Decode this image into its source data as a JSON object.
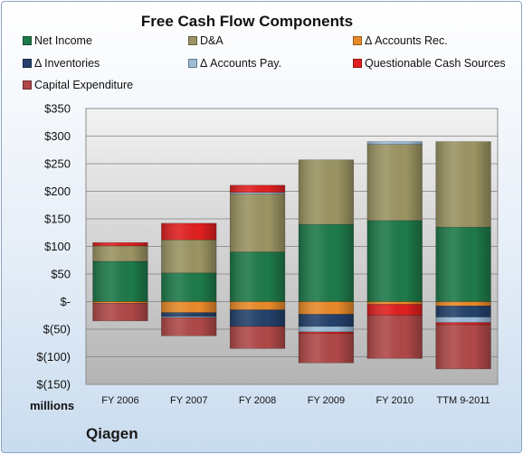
{
  "chart_data": {
    "type": "bar",
    "stacked": true,
    "title": "Free Cash Flow Components",
    "units_label": "millions",
    "footer_label": "Qiagen",
    "categories": [
      "FY 2006",
      "FY 2007",
      "FY 2008",
      "FY 2009",
      "FY 2010",
      "TTM 9-2011"
    ],
    "ylim": [
      -150,
      350
    ],
    "yticks": [
      350,
      300,
      250,
      200,
      150,
      100,
      50,
      0,
      -50,
      -100,
      -150
    ],
    "ytick_labels": [
      "$350",
      "$300",
      "$250",
      "$200",
      "$150",
      "$100",
      "$50",
      "$-",
      "$(50)",
      "$(100)",
      "$(150)"
    ],
    "grid": true,
    "legend_position": "top",
    "series": [
      {
        "name": "Net Income",
        "color": "#1e7a4a",
        "values": [
          73,
          52,
          90,
          140,
          147,
          135
        ]
      },
      {
        "name": "D&A",
        "color": "#9b9463",
        "values": [
          28,
          60,
          105,
          117,
          138,
          155
        ]
      },
      {
        "name": "Δ Accounts Rec.",
        "color": "#e88a2a",
        "values": [
          -3,
          -20,
          -15,
          -23,
          -5,
          -8
        ]
      },
      {
        "name": "Δ Inventories",
        "color": "#23416b",
        "values": [
          0,
          -7,
          -30,
          -22,
          0,
          -20
        ]
      },
      {
        "name": "Δ Accounts Pay.",
        "color": "#9cbcd8",
        "values": [
          0,
          -2,
          3,
          -10,
          5,
          -10
        ]
      },
      {
        "name": "Questionable Cash Sources",
        "color": "#e02020",
        "values": [
          6,
          30,
          13,
          -3,
          -20,
          -4
        ]
      },
      {
        "name": "Capital Expenditure",
        "color": "#b04848",
        "values": [
          -32,
          -33,
          -40,
          -53,
          -78,
          -80
        ]
      }
    ]
  }
}
